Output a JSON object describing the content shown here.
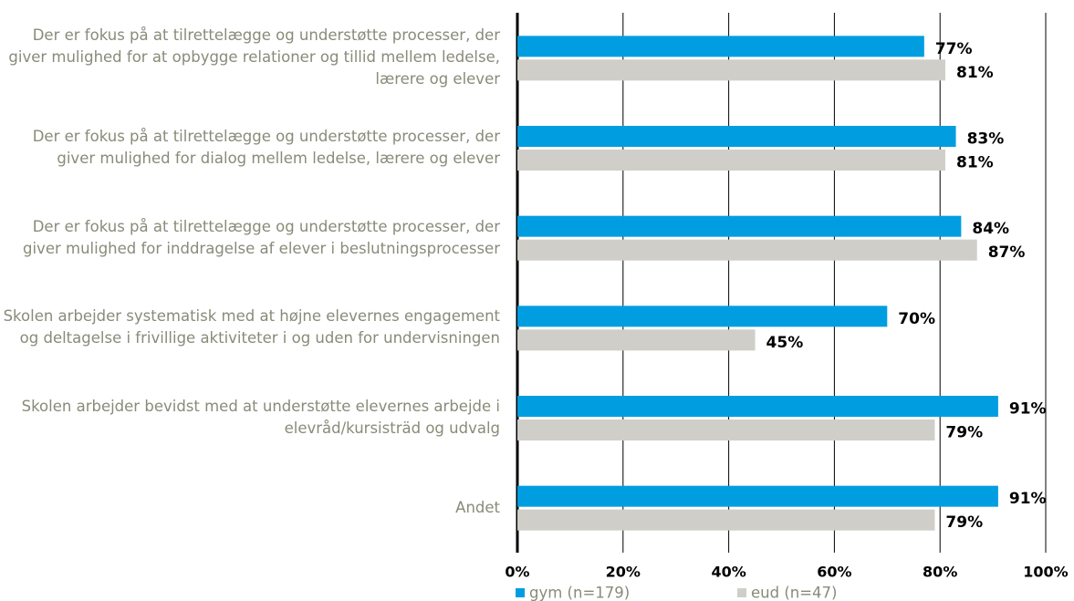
{
  "chart_data": {
    "type": "bar",
    "orientation": "horizontal",
    "categories": [
      "Der er fokus på at tilrettelægge og understøtte processer, der giver mulighed for at opbygge relationer og tillid mellem ledelse, lærere og elever",
      "Der er fokus på at tilrettelægge og understøtte processer, der giver mulighed for dialog mellem ledelse, lærere og elever",
      "Der er fokus på at tilrettelægge og understøtte processer, der giver mulighed for inddragelse af elever i beslutningsprocesser",
      "Skolen arbejder systematisk med at højne elevernes engagement og deltagelse i frivillige aktiviteter i og uden for undervisningen",
      "Skolen arbejder bevidst med at understøtte elevernes arbejde i elevråd/kursisträd og udvalg",
      "Andet"
    ],
    "series": [
      {
        "name": "gym (n=179)",
        "color": "#009ee0",
        "values": [
          77,
          83,
          84,
          70,
          91,
          91
        ],
        "value_labels": [
          "77%",
          "83%",
          "84%",
          "70%",
          "91%",
          "91%"
        ]
      },
      {
        "name": "eud (n=47)",
        "color": "#d0cec8",
        "values": [
          81,
          81,
          87,
          45,
          79,
          79
        ],
        "value_labels": [
          "81%",
          "81%",
          "87%",
          "45%",
          "79%",
          "79%"
        ]
      }
    ],
    "xlim": [
      0,
      100
    ],
    "xticks": [
      {
        "value": 0,
        "label": "0%"
      },
      {
        "value": 20,
        "label": "20%"
      },
      {
        "value": 40,
        "label": "40%"
      },
      {
        "value": 60,
        "label": "60%"
      },
      {
        "value": 80,
        "label": "80%"
      },
      {
        "value": 100,
        "label": "100%"
      }
    ],
    "grid": true,
    "legend": "bottom"
  }
}
